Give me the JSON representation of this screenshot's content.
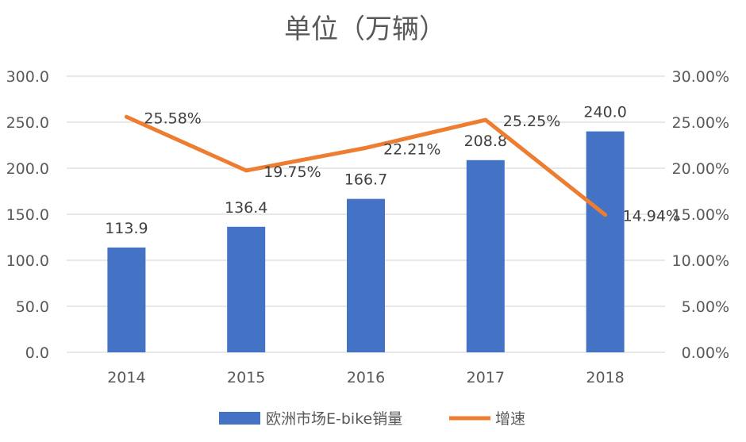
{
  "chart_data": {
    "type": "bar",
    "title": "单位（万辆）",
    "categories": [
      "2014",
      "2015",
      "2016",
      "2017",
      "2018"
    ],
    "series": [
      {
        "name": "欧洲市场E-bike销量",
        "type": "bar",
        "axis": "left",
        "values": [
          113.9,
          136.4,
          166.7,
          208.8,
          240.0
        ],
        "labels": [
          "113.9",
          "136.4",
          "166.7",
          "208.8",
          "240.0"
        ],
        "color": "#4472C4"
      },
      {
        "name": "增速",
        "type": "line",
        "axis": "right",
        "values": [
          25.58,
          19.75,
          22.21,
          25.25,
          14.94
        ],
        "labels": [
          "25.58%",
          "19.75%",
          "22.21%",
          "25.25%",
          "14.94%"
        ],
        "color": "#ED7D31"
      }
    ],
    "y_left": {
      "lim": [
        0,
        300
      ],
      "ticks": [
        0,
        50,
        100,
        150,
        200,
        250,
        300
      ],
      "tick_labels": [
        "0.0",
        "50.0",
        "100.0",
        "150.0",
        "200.0",
        "250.0",
        "300.0"
      ]
    },
    "y_right": {
      "lim": [
        0,
        30
      ],
      "ticks": [
        0,
        5,
        10,
        15,
        20,
        25,
        30
      ],
      "tick_labels": [
        "0.00%",
        "5.00%",
        "10.00%",
        "15.00%",
        "20.00%",
        "25.00%",
        "30.00%"
      ]
    },
    "grid": true,
    "legend_position": "bottom",
    "gridline_color": "#D9D9D9",
    "text_color": "#595959"
  }
}
